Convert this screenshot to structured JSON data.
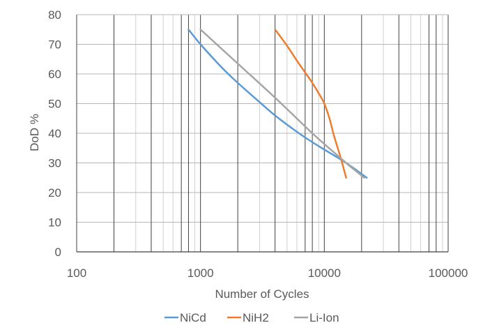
{
  "chart_data": {
    "type": "line",
    "title": "",
    "xlabel": "Number of Cycles",
    "ylabel": "DoD %",
    "x_scale": "log",
    "xlim": [
      100,
      100000
    ],
    "ylim": [
      0,
      80
    ],
    "x_ticks": [
      100,
      1000,
      10000,
      100000
    ],
    "x_tick_labels": [
      "100",
      "1000",
      "10000",
      "100000"
    ],
    "y_ticks": [
      0,
      10,
      20,
      30,
      40,
      50,
      60,
      70,
      80
    ],
    "y_tick_labels": [
      "0",
      "10",
      "20",
      "30",
      "40",
      "50",
      "60",
      "70",
      "80"
    ],
    "grid": true,
    "legend_position": "bottom",
    "series": [
      {
        "name": "NiCd",
        "color": "#5B9BD5",
        "x": [
          800,
          1000,
          1500,
          2000,
          3000,
          4000,
          6000,
          8000,
          10000,
          15000,
          22000
        ],
        "y": [
          75,
          70,
          62,
          57,
          50.5,
          46,
          40.5,
          37,
          34.5,
          30,
          25
        ]
      },
      {
        "name": "NiH2",
        "color": "#ED7D31",
        "x": [
          4000,
          5000,
          6000,
          7000,
          8000,
          9000,
          10000,
          11000,
          12000,
          13500,
          15000
        ],
        "y": [
          75,
          69.5,
          64.5,
          60.5,
          57,
          53.5,
          50,
          45,
          39,
          32,
          25
        ]
      },
      {
        "name": "Li-Ion",
        "color": "#A5A5A5",
        "x": [
          1000,
          2000,
          4000,
          8000,
          12000,
          16000,
          21000
        ],
        "y": [
          75,
          63.5,
          52,
          40,
          33.5,
          29,
          25
        ]
      }
    ]
  }
}
